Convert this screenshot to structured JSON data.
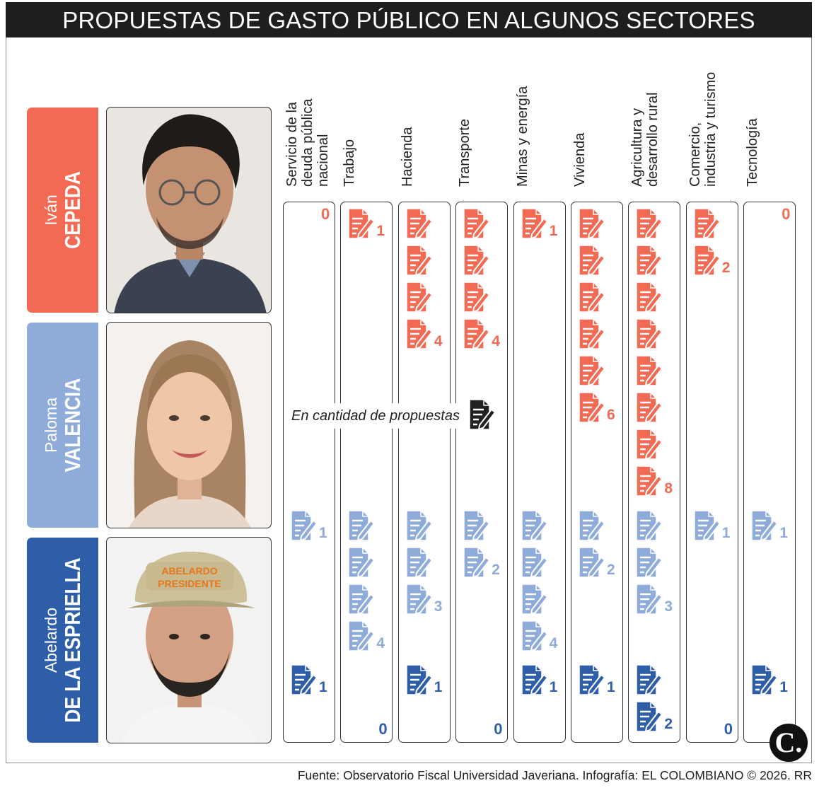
{
  "title": "PROPUESTAS DE GASTO PÚBLICO EN ALGUNOS SECTORES",
  "legend": "En cantidad de propuestas",
  "source": "Fuente: Observatorio Fiscal Universidad Javeriana. Infografía: EL COLOMBIANO © 2026. RR",
  "logo": "C.",
  "colors": {
    "cepeda": "#f26a53",
    "valencia": "#8eabd9",
    "espriella": "#2f5ea8",
    "legend_icon": "#222222"
  },
  "candidates": [
    {
      "first": "Iván",
      "last": "CEPEDA",
      "color": "#f26a53"
    },
    {
      "first": "Paloma",
      "last": "VALENCIA",
      "color": "#8eabd9"
    },
    {
      "first": "Abelardo",
      "last": "DE LA ESPRIELLA",
      "color": "#2f5ea8"
    }
  ],
  "chart_data": {
    "type": "table",
    "unit_icon": "document-pen-icon",
    "categories": [
      "Servicio de la deuda pública nacional",
      "Trabajo",
      "Hacienda",
      "Transporte",
      "Minas y energía",
      "Vivienda",
      "Agricultura y desarrollo rural",
      "Comercio, industria y turismo",
      "Tecnología"
    ],
    "category_lines": [
      [
        "Servicio de la",
        "deuda pública",
        "nacional"
      ],
      [
        "Trabajo"
      ],
      [
        "Hacienda"
      ],
      [
        "Transporte"
      ],
      [
        "Minas y energía"
      ],
      [
        "Vivienda"
      ],
      [
        "Agricultura y",
        "desarrollo rural"
      ],
      [
        "Comercio,",
        "industria y turismo"
      ],
      [
        "Tecnología"
      ]
    ],
    "series": [
      {
        "name": "Iván CEPEDA",
        "values": [
          0,
          1,
          4,
          4,
          1,
          6,
          8,
          2,
          0
        ]
      },
      {
        "name": "Paloma VALENCIA",
        "values": [
          1,
          4,
          3,
          2,
          4,
          2,
          3,
          1,
          1
        ]
      },
      {
        "name": "Abelardo DE LA ESPRIELLA",
        "values": [
          1,
          0,
          1,
          0,
          1,
          1,
          2,
          0,
          1
        ]
      }
    ]
  }
}
